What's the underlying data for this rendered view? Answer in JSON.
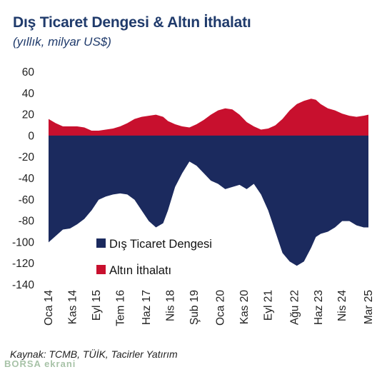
{
  "title": "Dış Ticaret Dengesi & Altın İthalatı",
  "subtitle": "(yıllık, milyar US$)",
  "source": "Kaynak: TCMB, TÜİK, Tacirler Yatırım",
  "watermark": "BORSA ekrani",
  "chart_data": {
    "type": "area",
    "ylim": [
      -140,
      60
    ],
    "yticks": [
      60,
      40,
      20,
      0,
      -20,
      -40,
      -60,
      -80,
      -100,
      -120,
      -140
    ],
    "ytick_labels": [
      "60",
      "40",
      "20",
      "0",
      "-20",
      "-40",
      "-60",
      "-80",
      "-100",
      "-120",
      "-140"
    ],
    "xtick_labels": [
      "Oca 14",
      "Kas 14",
      "Eyl 15",
      "Tem 16",
      "Haz 17",
      "Nis 18",
      "Şub 19",
      "Oca 20",
      "Kas 20",
      "Eyl 21",
      "Ağu 22",
      "Haz 23",
      "Nis 24",
      "Mar 25"
    ],
    "xlim": [
      0,
      134
    ],
    "xtick_positions": [
      0,
      10,
      20,
      30,
      41,
      51,
      61,
      72,
      82,
      92,
      103,
      113,
      123,
      134
    ],
    "legend_position": "center-left",
    "series": [
      {
        "name": "Dış Ticaret Dengesi",
        "color": "#1b2a5e",
        "x": [
          0,
          3,
          6,
          9,
          12,
          15,
          18,
          21,
          24,
          27,
          30,
          33,
          36,
          39,
          42,
          45,
          48,
          50,
          53,
          56,
          59,
          62,
          65,
          68,
          71,
          74,
          77,
          80,
          83,
          86,
          89,
          92,
          95,
          98,
          101,
          104,
          107,
          110,
          112,
          114,
          117,
          120,
          123,
          126,
          129,
          132,
          134
        ],
        "y": [
          -100,
          -94,
          -88,
          -87,
          -83,
          -78,
          -70,
          -60,
          -57,
          -55,
          -54,
          -55,
          -60,
          -70,
          -80,
          -86,
          -82,
          -70,
          -48,
          -35,
          -24,
          -28,
          -35,
          -42,
          -45,
          -50,
          -48,
          -46,
          -50,
          -45,
          -55,
          -70,
          -90,
          -110,
          -118,
          -122,
          -118,
          -105,
          -95,
          -92,
          -90,
          -86,
          -80,
          -80,
          -84,
          -86,
          -86
        ]
      },
      {
        "name": "Altın İthalatı",
        "color": "#c8102e",
        "x": [
          0,
          3,
          6,
          9,
          12,
          15,
          18,
          21,
          24,
          27,
          30,
          33,
          36,
          39,
          42,
          45,
          48,
          50,
          53,
          56,
          59,
          62,
          65,
          68,
          71,
          74,
          77,
          80,
          83,
          86,
          89,
          92,
          95,
          98,
          101,
          104,
          107,
          110,
          112,
          114,
          117,
          120,
          123,
          126,
          129,
          132,
          134
        ],
        "y": [
          16,
          12,
          9,
          9,
          9,
          8,
          5,
          5,
          6,
          7,
          9,
          12,
          16,
          18,
          19,
          20,
          18,
          14,
          11,
          9,
          8,
          11,
          15,
          20,
          24,
          26,
          25,
          20,
          13,
          9,
          6,
          7,
          10,
          16,
          24,
          30,
          33,
          35,
          34,
          30,
          26,
          24,
          21,
          19,
          18,
          19,
          20
        ]
      }
    ]
  }
}
